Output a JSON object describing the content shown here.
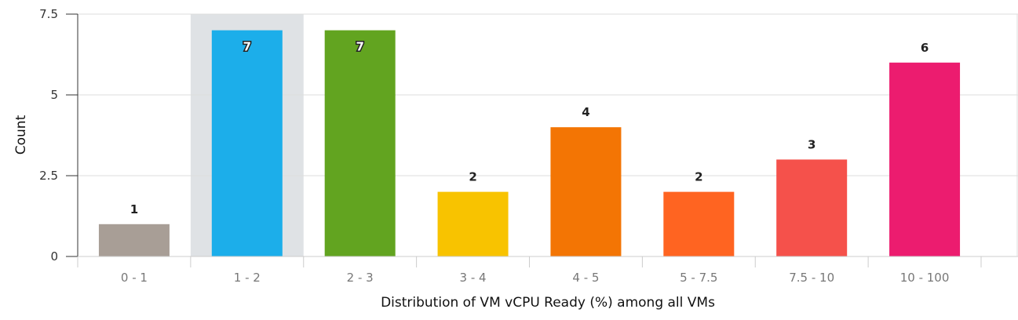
{
  "chart_data": {
    "type": "bar",
    "title": "",
    "xlabel": "Distribution of VM vCPU Ready (%) among all VMs",
    "ylabel": "Count",
    "ylim": [
      0,
      7.5
    ],
    "yticks": [
      "0",
      "2.5",
      "5",
      "7.5"
    ],
    "ytick_values": [
      0,
      2.5,
      5,
      7.5
    ],
    "categories": [
      "0 - 1",
      "1 - 2",
      "2 - 3",
      "3 - 4",
      "4 - 5",
      "5 - 7.5",
      "7.5 - 10",
      "10 - 100"
    ],
    "values": [
      1,
      7,
      7,
      2,
      4,
      2,
      3,
      6
    ],
    "data_labels": [
      "1",
      "7",
      "7",
      "2",
      "4",
      "2",
      "3",
      "6"
    ],
    "colors": [
      "#a89e96",
      "#1caeea",
      "#62a420",
      "#f8c300",
      "#f37504",
      "#ff6421",
      "#f5514b",
      "#ec1c6f"
    ],
    "highlighted_category": "1 - 2",
    "highlight_color": "#dfe2e5",
    "grid": true,
    "legend": "none"
  }
}
